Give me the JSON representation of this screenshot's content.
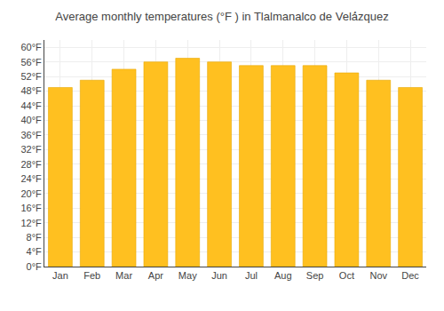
{
  "chart_data": {
    "type": "bar",
    "title": "Average monthly temperatures (°F ) in Tlalmanalco de Velá́zquez",
    "categories": [
      "Jan",
      "Feb",
      "Mar",
      "Apr",
      "May",
      "Jun",
      "Jul",
      "Aug",
      "Sep",
      "Oct",
      "Nov",
      "Dec"
    ],
    "values": [
      49,
      51,
      54,
      56,
      57,
      56,
      55,
      55,
      55,
      53,
      51,
      49
    ],
    "color": "#FFC020",
    "ylim": [
      0,
      62
    ],
    "yticks": [
      {
        "value": 0,
        "label": "0°F"
      },
      {
        "value": 4,
        "label": "4°F"
      },
      {
        "value": 8,
        "label": "8°F"
      },
      {
        "value": 12,
        "label": "12°F"
      },
      {
        "value": 16,
        "label": "16°F"
      },
      {
        "value": 20,
        "label": "20°F"
      },
      {
        "value": 24,
        "label": "24°F"
      },
      {
        "value": 28,
        "label": "28°F"
      },
      {
        "value": 32,
        "label": "32°F"
      },
      {
        "value": 36,
        "label": "36°F"
      },
      {
        "value": 40,
        "label": "40°F"
      },
      {
        "value": 44,
        "label": "44°F"
      },
      {
        "value": 48,
        "label": "48°F"
      },
      {
        "value": 52,
        "label": "52°F"
      },
      {
        "value": 56,
        "label": "56°F"
      },
      {
        "value": 60,
        "label": "60°F"
      }
    ],
    "grid": true
  }
}
